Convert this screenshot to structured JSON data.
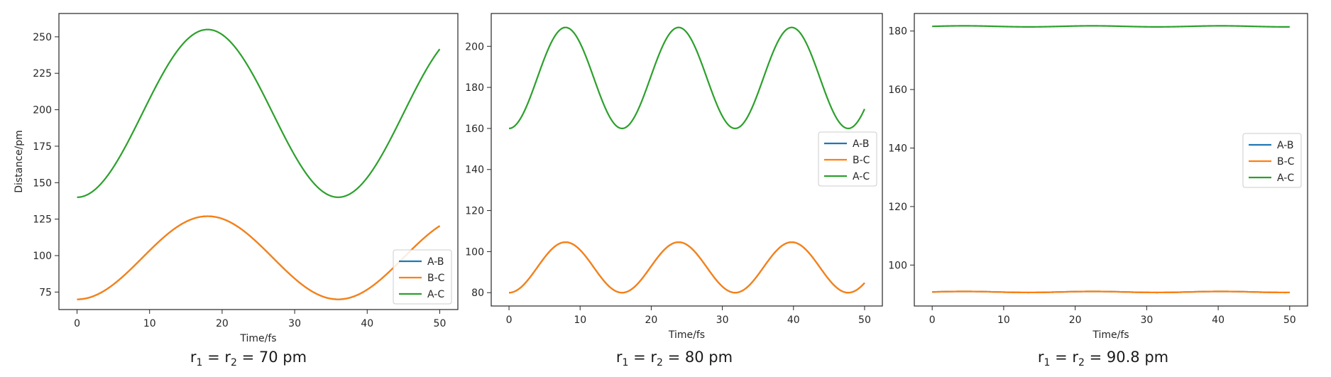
{
  "chart_data": [
    {
      "type": "line",
      "caption": {
        "pre": "r",
        "s1": "1",
        "mid": " = r",
        "s2": "2",
        "post": " = 70 pm"
      },
      "xlabel": "Time/fs",
      "ylabel": "Distance/pm",
      "xlim": [
        -2.5,
        52.5
      ],
      "ylim": [
        63,
        266
      ],
      "xticks": [
        0,
        10,
        20,
        30,
        40,
        50
      ],
      "yticks": [
        75,
        100,
        125,
        150,
        175,
        200,
        225,
        250
      ],
      "legend": "lower-right",
      "grid": false,
      "series": [
        {
          "name": "A-B",
          "color": "#1f77b4",
          "base": 70,
          "amp": 57,
          "period": 36,
          "flat": false
        },
        {
          "name": "B-C",
          "color": "#ff7f0e",
          "base": 70,
          "amp": 57,
          "period": 36,
          "flat": false
        },
        {
          "name": "A-C",
          "color": "#2ca02c",
          "base": 140,
          "amp": 115,
          "period": 36,
          "flat": false
        }
      ]
    },
    {
      "type": "line",
      "caption": {
        "pre": "r",
        "s1": "1",
        "mid": " = r",
        "s2": "2",
        "post": " = 80 pm"
      },
      "xlabel": "Time/fs",
      "ylabel": "",
      "xlim": [
        -2.5,
        52.5
      ],
      "ylim": [
        73.5,
        216
      ],
      "xticks": [
        0,
        10,
        20,
        30,
        40,
        50
      ],
      "yticks": [
        80,
        100,
        120,
        140,
        160,
        180,
        200
      ],
      "legend": "center-right",
      "grid": false,
      "series": [
        {
          "name": "A-B",
          "color": "#1f77b4",
          "base": 80,
          "amp": 24.6,
          "period": 15.9,
          "flat": false
        },
        {
          "name": "B-C",
          "color": "#ff7f0e",
          "base": 80,
          "amp": 24.6,
          "period": 15.9,
          "flat": false
        },
        {
          "name": "A-C",
          "color": "#2ca02c",
          "base": 160,
          "amp": 49.2,
          "period": 15.9,
          "flat": false
        }
      ]
    },
    {
      "type": "line",
      "caption": {
        "pre": "r",
        "s1": "1",
        "mid": " = r",
        "s2": "2",
        "post": " = 90.8 pm"
      },
      "xlabel": "Time/fs",
      "ylabel": "",
      "xlim": [
        -2.5,
        52.5
      ],
      "ylim": [
        86,
        186
      ],
      "xticks": [
        0,
        10,
        20,
        30,
        40,
        50
      ],
      "yticks": [
        100,
        120,
        140,
        160,
        180
      ],
      "legend": "center-right",
      "grid": false,
      "series": [
        {
          "name": "A-B",
          "color": "#1f77b4",
          "base": 90.8,
          "amp": 0,
          "period": 20,
          "flat": true
        },
        {
          "name": "B-C",
          "color": "#ff7f0e",
          "base": 90.8,
          "amp": 0,
          "period": 20,
          "flat": true
        },
        {
          "name": "A-C",
          "color": "#2ca02c",
          "base": 181.6,
          "amp": 0,
          "period": 20,
          "flat": true
        }
      ]
    }
  ]
}
